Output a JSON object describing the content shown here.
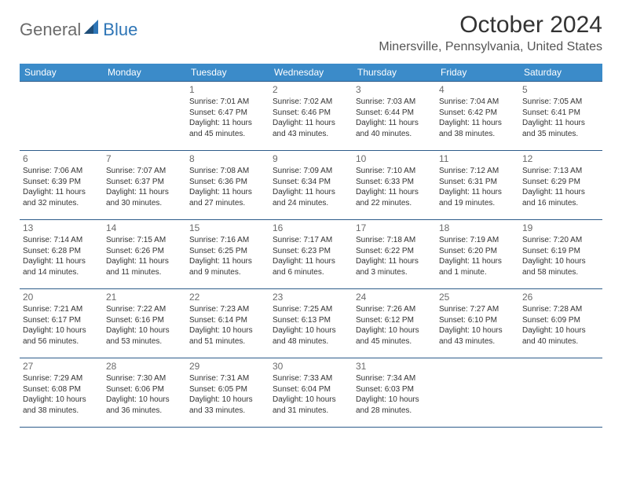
{
  "logo": {
    "part1": "General",
    "part2": "Blue"
  },
  "title": "October 2024",
  "location": "Minersville, Pennsylvania, United States",
  "colors": {
    "header_bg": "#3b8bc9",
    "header_text": "#ffffff",
    "border": "#2e5c8a",
    "daynum": "#6b6b6b",
    "body_text": "#333333",
    "logo_gray": "#6b6b6b",
    "logo_blue": "#2e75b6",
    "page_bg": "#ffffff"
  },
  "weekdays": [
    "Sunday",
    "Monday",
    "Tuesday",
    "Wednesday",
    "Thursday",
    "Friday",
    "Saturday"
  ],
  "weeks": [
    [
      null,
      null,
      {
        "day": "1",
        "sunrise": "Sunrise: 7:01 AM",
        "sunset": "Sunset: 6:47 PM",
        "dl1": "Daylight: 11 hours",
        "dl2": "and 45 minutes."
      },
      {
        "day": "2",
        "sunrise": "Sunrise: 7:02 AM",
        "sunset": "Sunset: 6:46 PM",
        "dl1": "Daylight: 11 hours",
        "dl2": "and 43 minutes."
      },
      {
        "day": "3",
        "sunrise": "Sunrise: 7:03 AM",
        "sunset": "Sunset: 6:44 PM",
        "dl1": "Daylight: 11 hours",
        "dl2": "and 40 minutes."
      },
      {
        "day": "4",
        "sunrise": "Sunrise: 7:04 AM",
        "sunset": "Sunset: 6:42 PM",
        "dl1": "Daylight: 11 hours",
        "dl2": "and 38 minutes."
      },
      {
        "day": "5",
        "sunrise": "Sunrise: 7:05 AM",
        "sunset": "Sunset: 6:41 PM",
        "dl1": "Daylight: 11 hours",
        "dl2": "and 35 minutes."
      }
    ],
    [
      {
        "day": "6",
        "sunrise": "Sunrise: 7:06 AM",
        "sunset": "Sunset: 6:39 PM",
        "dl1": "Daylight: 11 hours",
        "dl2": "and 32 minutes."
      },
      {
        "day": "7",
        "sunrise": "Sunrise: 7:07 AM",
        "sunset": "Sunset: 6:37 PM",
        "dl1": "Daylight: 11 hours",
        "dl2": "and 30 minutes."
      },
      {
        "day": "8",
        "sunrise": "Sunrise: 7:08 AM",
        "sunset": "Sunset: 6:36 PM",
        "dl1": "Daylight: 11 hours",
        "dl2": "and 27 minutes."
      },
      {
        "day": "9",
        "sunrise": "Sunrise: 7:09 AM",
        "sunset": "Sunset: 6:34 PM",
        "dl1": "Daylight: 11 hours",
        "dl2": "and 24 minutes."
      },
      {
        "day": "10",
        "sunrise": "Sunrise: 7:10 AM",
        "sunset": "Sunset: 6:33 PM",
        "dl1": "Daylight: 11 hours",
        "dl2": "and 22 minutes."
      },
      {
        "day": "11",
        "sunrise": "Sunrise: 7:12 AM",
        "sunset": "Sunset: 6:31 PM",
        "dl1": "Daylight: 11 hours",
        "dl2": "and 19 minutes."
      },
      {
        "day": "12",
        "sunrise": "Sunrise: 7:13 AM",
        "sunset": "Sunset: 6:29 PM",
        "dl1": "Daylight: 11 hours",
        "dl2": "and 16 minutes."
      }
    ],
    [
      {
        "day": "13",
        "sunrise": "Sunrise: 7:14 AM",
        "sunset": "Sunset: 6:28 PM",
        "dl1": "Daylight: 11 hours",
        "dl2": "and 14 minutes."
      },
      {
        "day": "14",
        "sunrise": "Sunrise: 7:15 AM",
        "sunset": "Sunset: 6:26 PM",
        "dl1": "Daylight: 11 hours",
        "dl2": "and 11 minutes."
      },
      {
        "day": "15",
        "sunrise": "Sunrise: 7:16 AM",
        "sunset": "Sunset: 6:25 PM",
        "dl1": "Daylight: 11 hours",
        "dl2": "and 9 minutes."
      },
      {
        "day": "16",
        "sunrise": "Sunrise: 7:17 AM",
        "sunset": "Sunset: 6:23 PM",
        "dl1": "Daylight: 11 hours",
        "dl2": "and 6 minutes."
      },
      {
        "day": "17",
        "sunrise": "Sunrise: 7:18 AM",
        "sunset": "Sunset: 6:22 PM",
        "dl1": "Daylight: 11 hours",
        "dl2": "and 3 minutes."
      },
      {
        "day": "18",
        "sunrise": "Sunrise: 7:19 AM",
        "sunset": "Sunset: 6:20 PM",
        "dl1": "Daylight: 11 hours",
        "dl2": "and 1 minute."
      },
      {
        "day": "19",
        "sunrise": "Sunrise: 7:20 AM",
        "sunset": "Sunset: 6:19 PM",
        "dl1": "Daylight: 10 hours",
        "dl2": "and 58 minutes."
      }
    ],
    [
      {
        "day": "20",
        "sunrise": "Sunrise: 7:21 AM",
        "sunset": "Sunset: 6:17 PM",
        "dl1": "Daylight: 10 hours",
        "dl2": "and 56 minutes."
      },
      {
        "day": "21",
        "sunrise": "Sunrise: 7:22 AM",
        "sunset": "Sunset: 6:16 PM",
        "dl1": "Daylight: 10 hours",
        "dl2": "and 53 minutes."
      },
      {
        "day": "22",
        "sunrise": "Sunrise: 7:23 AM",
        "sunset": "Sunset: 6:14 PM",
        "dl1": "Daylight: 10 hours",
        "dl2": "and 51 minutes."
      },
      {
        "day": "23",
        "sunrise": "Sunrise: 7:25 AM",
        "sunset": "Sunset: 6:13 PM",
        "dl1": "Daylight: 10 hours",
        "dl2": "and 48 minutes."
      },
      {
        "day": "24",
        "sunrise": "Sunrise: 7:26 AM",
        "sunset": "Sunset: 6:12 PM",
        "dl1": "Daylight: 10 hours",
        "dl2": "and 45 minutes."
      },
      {
        "day": "25",
        "sunrise": "Sunrise: 7:27 AM",
        "sunset": "Sunset: 6:10 PM",
        "dl1": "Daylight: 10 hours",
        "dl2": "and 43 minutes."
      },
      {
        "day": "26",
        "sunrise": "Sunrise: 7:28 AM",
        "sunset": "Sunset: 6:09 PM",
        "dl1": "Daylight: 10 hours",
        "dl2": "and 40 minutes."
      }
    ],
    [
      {
        "day": "27",
        "sunrise": "Sunrise: 7:29 AM",
        "sunset": "Sunset: 6:08 PM",
        "dl1": "Daylight: 10 hours",
        "dl2": "and 38 minutes."
      },
      {
        "day": "28",
        "sunrise": "Sunrise: 7:30 AM",
        "sunset": "Sunset: 6:06 PM",
        "dl1": "Daylight: 10 hours",
        "dl2": "and 36 minutes."
      },
      {
        "day": "29",
        "sunrise": "Sunrise: 7:31 AM",
        "sunset": "Sunset: 6:05 PM",
        "dl1": "Daylight: 10 hours",
        "dl2": "and 33 minutes."
      },
      {
        "day": "30",
        "sunrise": "Sunrise: 7:33 AM",
        "sunset": "Sunset: 6:04 PM",
        "dl1": "Daylight: 10 hours",
        "dl2": "and 31 minutes."
      },
      {
        "day": "31",
        "sunrise": "Sunrise: 7:34 AM",
        "sunset": "Sunset: 6:03 PM",
        "dl1": "Daylight: 10 hours",
        "dl2": "and 28 minutes."
      },
      null,
      null
    ]
  ]
}
